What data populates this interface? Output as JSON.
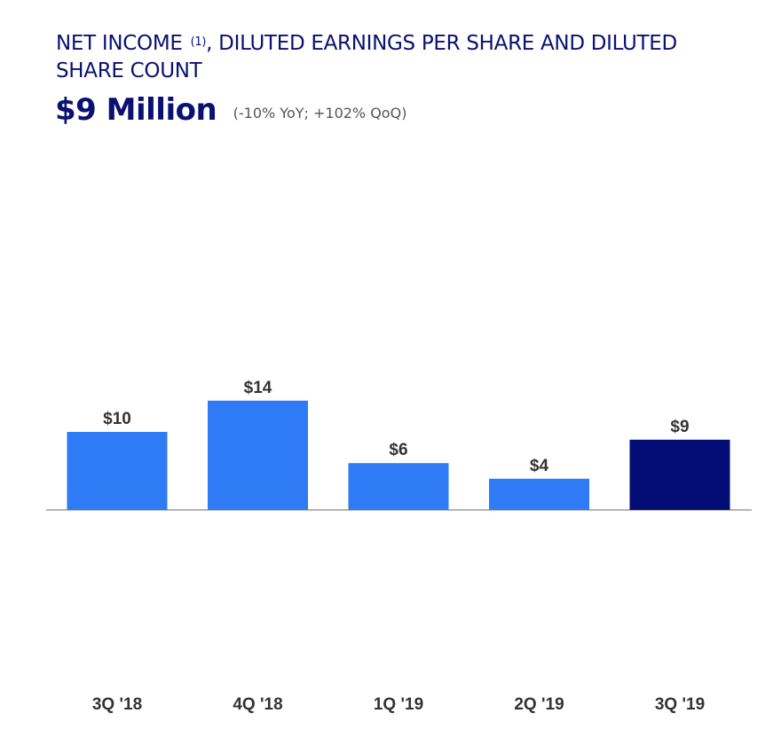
{
  "header": {
    "title_part1": "NET INCOME ",
    "title_footnote": "(1)",
    "title_part2": ", DILUTED EARNINGS PER SHARE AND DILUTED SHARE COUNT",
    "headline_value": "$9 Million",
    "headline_delta": "(-10% YoY; +102% QoQ)"
  },
  "colors": {
    "title": "#0a1172",
    "bar_default": "#2f7bf5",
    "bar_highlight": "#040d75",
    "axis": "#888888",
    "label": "#333333"
  },
  "chart_data": {
    "type": "bar",
    "title": "",
    "xlabel": "",
    "ylabel": "",
    "categories": [
      "3Q '18",
      "4Q '18",
      "1Q '19",
      "2Q '19",
      "3Q '19"
    ],
    "values": [
      10,
      14,
      6,
      4,
      9
    ],
    "value_labels": [
      "$10",
      "$14",
      "$6",
      "$4",
      "$9"
    ],
    "highlight_index": 4,
    "ylim": [
      0,
      14
    ],
    "grid": false,
    "legend": "none"
  }
}
